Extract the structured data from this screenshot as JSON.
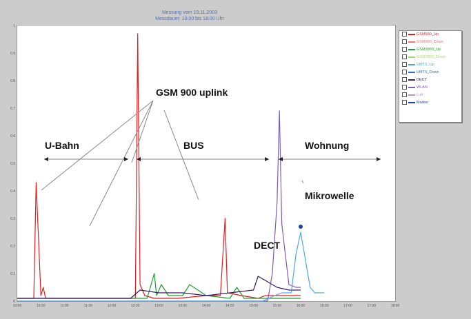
{
  "chart_data": {
    "type": "line",
    "title": "Messung vom 19.11.2003",
    "subtitle": "Messdauer: 10:00 bis 18:00 Uhr",
    "ylim": [
      0,
      1
    ],
    "y_ticks": [
      "0",
      "0.1",
      "0.2",
      "0.3",
      "0.4",
      "0.5",
      "0.6",
      "0.7",
      "0.8",
      "0.9",
      "1"
    ],
    "x_ticks": [
      "10:00",
      "10:30",
      "11:00",
      "11:30",
      "12:00",
      "12:30",
      "13:00",
      "13:30",
      "14:00",
      "14:30",
      "15:00",
      "15:30",
      "16:00",
      "16:30",
      "17:00",
      "17:30",
      "18:00"
    ],
    "legend": {
      "position": "top-right",
      "entries": [
        {
          "name": "GSM900_Up",
          "color": "#e41a1c"
        },
        {
          "name": "GSM900_Down",
          "color": "#ff6f6f"
        },
        {
          "name": "GSM1800_Up",
          "color": "#1f9e2c"
        },
        {
          "name": "GSM1800_Down",
          "color": "#9fdc6b"
        },
        {
          "name": "UMTS_Up",
          "color": "#4fa6e0"
        },
        {
          "name": "UMTS_Down",
          "color": "#2b6fb8"
        },
        {
          "name": "DECT",
          "color": "#3a1a63"
        },
        {
          "name": "WLAN",
          "color": "#7d5ab8"
        },
        {
          "name": "Luft",
          "color": "#b08fe0"
        },
        {
          "name": "Marker",
          "color": "#1f3fa8"
        }
      ]
    },
    "series": [
      {
        "name": "GSM900_Up",
        "color": "#e41a1c",
        "x": [
          0.0,
          0.7,
          0.8,
          1.0,
          1.1,
          1.2,
          1.6,
          4.0,
          5.0,
          5.1,
          5.2,
          5.4,
          5.8,
          6.8,
          8.0,
          8.6,
          8.8,
          8.9,
          9.5,
          10.2,
          10.5,
          10.6,
          11.0,
          11.3,
          11.6,
          12.0
        ],
        "y": [
          0.01,
          0.01,
          0.43,
          0.02,
          0.05,
          0.01,
          0.01,
          0.01,
          0.01,
          0.97,
          0.06,
          0.02,
          0.01,
          0.01,
          0.02,
          0.02,
          0.3,
          0.03,
          0.02,
          0.01,
          0.02,
          0.02,
          0.02,
          0.02,
          0.02,
          0.02
        ]
      },
      {
        "name": "GSM1800_Up",
        "color": "#1f9e2c",
        "x": [
          0.0,
          5.5,
          5.8,
          5.9,
          6.1,
          6.4,
          7.0,
          7.3,
          8.0,
          9.0,
          9.3,
          9.6,
          10.0,
          12.0
        ],
        "y": [
          0.01,
          0.01,
          0.1,
          0.02,
          0.06,
          0.02,
          0.02,
          0.06,
          0.02,
          0.01,
          0.05,
          0.01,
          0.01,
          0.01
        ]
      },
      {
        "name": "DECT",
        "color": "#3a1a63",
        "x": [
          0.0,
          4.8,
          5.2,
          6.0,
          7.0,
          8.0,
          9.0,
          10.0,
          10.2,
          10.4,
          10.6,
          11.0,
          11.5,
          12.0
        ],
        "y": [
          0.01,
          0.01,
          0.04,
          0.03,
          0.03,
          0.02,
          0.03,
          0.04,
          0.09,
          0.08,
          0.07,
          0.05,
          0.04,
          0.04
        ]
      },
      {
        "name": "WLAN",
        "color": "#7d5ab8",
        "x": [
          0.0,
          10.6,
          10.8,
          11.0,
          11.1,
          11.2,
          11.5,
          11.8,
          12.0
        ],
        "y": [
          0.0,
          0.0,
          0.1,
          0.36,
          0.69,
          0.28,
          0.06,
          0.05,
          0.05
        ]
      },
      {
        "name": "UMTS_Up",
        "color": "#4fa6e0",
        "x": [
          0.0,
          10.4,
          10.9,
          11.2,
          11.6,
          11.8,
          12.0,
          12.4,
          12.6,
          12.8,
          13.0
        ],
        "y": [
          0.0,
          0.0,
          0.02,
          0.03,
          0.03,
          0.17,
          0.25,
          0.05,
          0.03,
          0.03,
          0.03
        ]
      }
    ]
  },
  "annotations": {
    "gsm": "GSM 900 uplink",
    "ubahn": "U-Bahn",
    "bus": "BUS",
    "wohnung": "Wohnung",
    "mikro": "Mikrowelle",
    "dect": "DECT"
  }
}
